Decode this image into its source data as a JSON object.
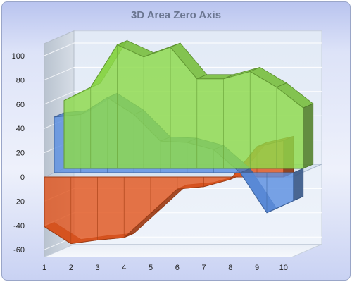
{
  "chart_data": {
    "type": "area",
    "title": "3D Area Zero Axis",
    "xlabel": "",
    "ylabel": "",
    "categories": [
      "1",
      "2",
      "3",
      "4",
      "5",
      "6",
      "7",
      "8",
      "9",
      "10"
    ],
    "ylim": [
      -60,
      100
    ],
    "yticks": [
      -60,
      -40,
      -20,
      0,
      20,
      40,
      60,
      80,
      100
    ],
    "grid": true,
    "legend": "none",
    "series": [
      {
        "color": "#e0561e",
        "values": [
          -41,
          -55,
          -52,
          -50,
          -30,
          -10,
          -8,
          -2,
          25,
          30
        ]
      },
      {
        "color": "#5b8fe0",
        "values": [
          46,
          48,
          62,
          48,
          26,
          25,
          19,
          0,
          -33,
          -23
        ]
      },
      {
        "color": "#8cd94a",
        "values": [
          56,
          67,
          102,
          92,
          100,
          74,
          74,
          80,
          67,
          50
        ]
      }
    ]
  }
}
